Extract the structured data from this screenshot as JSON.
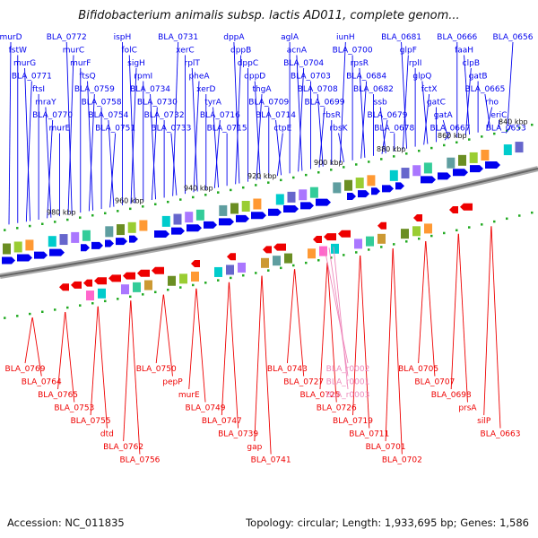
{
  "title": "Bifidobacterium animalis subsp. lactis AD011, complete genom...",
  "footer": {
    "accession": "Accession: NC_011835",
    "summary": "Topology: circular; Length: 1,933,695 bp; Genes: 1,586"
  },
  "colors": {
    "forward": "#0000ee",
    "reverse": "#ee0000",
    "rna": "#ee88bb",
    "backbone": "#888888",
    "ticks": "#22aa22"
  },
  "scale_labels": [
    "980 kbp",
    "960 kbp",
    "940 kbp",
    "920 kbp",
    "900 kbp",
    "880 kbp",
    "860 kbp",
    "840 kbp"
  ],
  "forward_labels": [
    "murD",
    "fstW",
    "murG",
    "BLA_0771",
    "ftsI",
    "mraY",
    "BLA_0770",
    "murE",
    "BLA_0772",
    "murC",
    "murF",
    "ftsQ",
    "BLA_0759",
    "BLA_0758",
    "BLA_0754",
    "BLA_0751",
    "ispH",
    "folC",
    "sigH",
    "rpmI",
    "BLA_0734",
    "BLA_0730",
    "BLA_0732",
    "BLA_0733",
    "BLA_0731",
    "xerC",
    "rplT",
    "pheA",
    "xerD",
    "tyrA",
    "BLA_0716",
    "BLA_0715",
    "dppA",
    "dppB",
    "dppC",
    "dppD",
    "thgA",
    "BLA_0709",
    "BLA_0714",
    "ctpE",
    "aglA",
    "acnA",
    "BLA_0704",
    "BLA_0703",
    "BLA_0708",
    "BLA_0699",
    "rbsR",
    "rbsK",
    "iunH",
    "BLA_0700",
    "rpsR",
    "BLA_0684",
    "BLA_0682",
    "ssb",
    "BLA_0679",
    "BLA_0678",
    "BLA_0681",
    "glpF",
    "rplI",
    "glpQ",
    "fctX",
    "gatC",
    "gatA",
    "BLA_0667",
    "BLA_0666",
    "faaH",
    "clpB",
    "gatB",
    "BLA_0665",
    "rho",
    "eriC",
    "BLA_0653",
    "BLA_0656"
  ],
  "reverse_labels": [
    "BLA_0769",
    "BLA_0764",
    "BLA_0765",
    "BLA_0753",
    "BLA_0755",
    "dtd",
    "BLA_0762",
    "BLA_0756",
    "BLA_0750",
    "pepP",
    "murE",
    "BLA_0749",
    "BLA_0747",
    "BLA_0739",
    "gap",
    "BLA_0741",
    "BLA_0743",
    "BLA_0727",
    "BLA_0725",
    "BLA_0726",
    "BLA_0719",
    "BLA_0711",
    "BLA_0701",
    "BLA_0702",
    "BLA_0705",
    "BLA_0707",
    "BLA_0698",
    "prsA",
    "silP",
    "BLA_0663"
  ],
  "rna_labels": [
    "BLA_r0002",
    "BLA_r0001",
    "BLA_r0003"
  ]
}
